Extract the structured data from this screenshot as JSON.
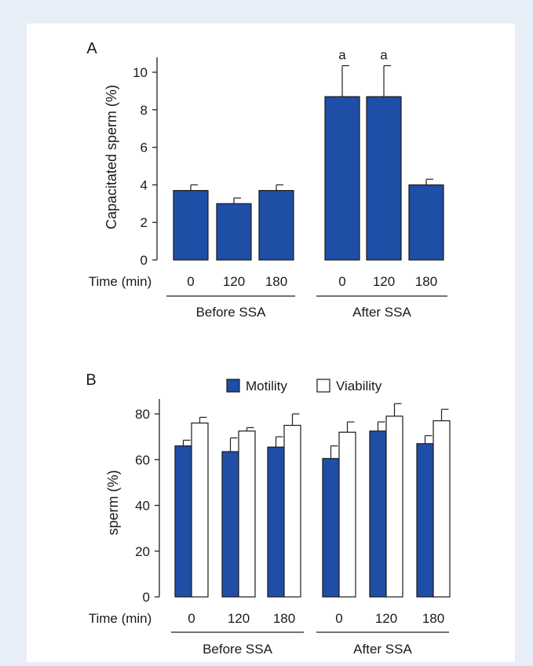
{
  "chart_data": [
    {
      "panel_label": "A",
      "type": "bar",
      "ylabel": "Capacitated sperm (%)",
      "xlabel": "Time (min)",
      "ylim": [
        0,
        10.5
      ],
      "yticks": [
        "0",
        "2",
        "4",
        "6",
        "8",
        "10"
      ],
      "groups": [
        {
          "label": "Before SSA",
          "categories": [
            "0",
            "120",
            "180"
          ]
        },
        {
          "label": "After SSA",
          "categories": [
            "0",
            "120",
            "180"
          ]
        }
      ],
      "series": [
        {
          "values": [
            3.7,
            3.0,
            3.7,
            8.7,
            8.7,
            4.0
          ],
          "errors": [
            0.3,
            0.3,
            0.3,
            1.65,
            1.65,
            0.3
          ],
          "color": "#1f4ea6"
        }
      ],
      "annotations": [
        "",
        "",
        "",
        "a",
        "a",
        ""
      ]
    },
    {
      "panel_label": "B",
      "type": "bar",
      "ylabel": "sperm (%)",
      "xlabel": "Time (min)",
      "ylim": [
        0,
        85
      ],
      "yticks": [
        "0",
        "20",
        "40",
        "60",
        "80"
      ],
      "groups": [
        {
          "label": "Before SSA",
          "categories": [
            "0",
            "120",
            "180"
          ]
        },
        {
          "label": "After SSA",
          "categories": [
            "0",
            "120",
            "180"
          ]
        }
      ],
      "series": [
        {
          "name": "Motility",
          "values": [
            66,
            63.5,
            65.5,
            60.5,
            72.5,
            67
          ],
          "errors": [
            2.5,
            6,
            4.5,
            5.5,
            4,
            3.5
          ],
          "color": "#1f4ea6"
        },
        {
          "name": "Viability",
          "values": [
            76,
            72.5,
            75,
            72,
            79,
            77
          ],
          "errors": [
            2.5,
            1.5,
            5,
            4.5,
            5.5,
            5
          ],
          "color": "#ffffff"
        }
      ],
      "legend_position": "top"
    }
  ]
}
